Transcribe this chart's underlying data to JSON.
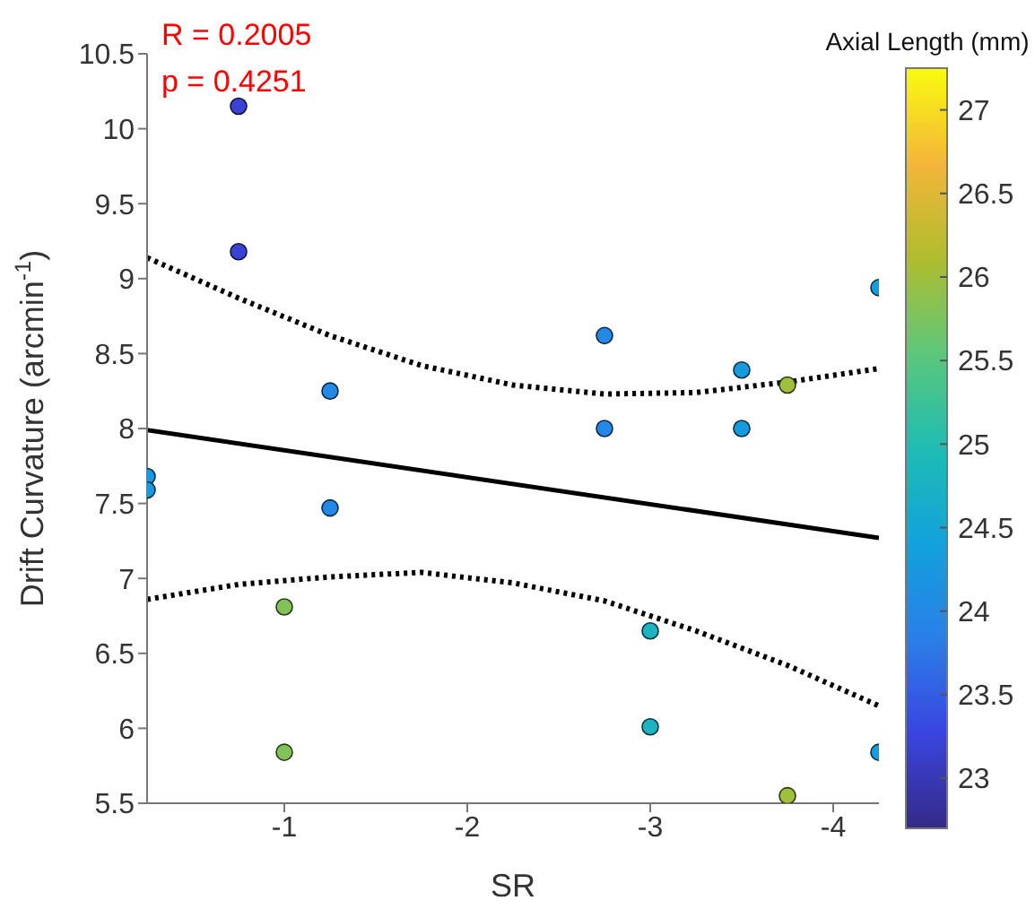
{
  "chart_data": {
    "type": "scatter",
    "xlabel": "SR",
    "ylabel": "Drift Curvature (arcmin$^{-1}$)",
    "clabel": "Axial Length (mm)",
    "annotations": [
      "R = 0.2005",
      "p = 0.4251"
    ],
    "xlim": [
      -0.25,
      -4.25
    ],
    "xticks": [
      -1,
      -2,
      -3,
      -4
    ],
    "ylim": [
      5.5,
      10.5
    ],
    "yticks": [
      5.5,
      6,
      6.5,
      7,
      7.5,
      8,
      8.5,
      9,
      9.5,
      10,
      10.5
    ],
    "clim": [
      22.7,
      27.25
    ],
    "cticks": [
      23,
      23.5,
      24,
      24.5,
      25,
      25.5,
      26,
      26.5,
      27
    ],
    "series": [
      {
        "type": "scatter",
        "marker": "circle",
        "x": [
          -0.75,
          -0.75,
          -1.25,
          -0.25,
          -0.25,
          -1.25,
          -1,
          -1,
          -2.75,
          -2.75,
          -3.5,
          -3.5,
          -3.75,
          -4.25,
          -3,
          -3,
          -4.25,
          -3.75
        ],
        "values": [
          10.15,
          9.18,
          8.25,
          7.68,
          7.59,
          7.47,
          6.81,
          5.84,
          8.62,
          8.0,
          8.39,
          8.0,
          8.29,
          8.94,
          6.65,
          6.01,
          5.84,
          5.55
        ],
        "colors": [
          "#3942d5",
          "#3942d5",
          "#2389e5",
          "#169bde",
          "#169bde",
          "#2389e5",
          "#82c258",
          "#82c258",
          "#2389e5",
          "#2389e5",
          "#169bde",
          "#169bde",
          "#9fbf3d",
          "#169bde",
          "#1bb4c0",
          "#1bb4c0",
          "#169bde",
          "#9fbf3d"
        ],
        "cvalues": [
          23.2,
          23.2,
          24,
          24.3,
          24.3,
          24,
          25.8,
          25.8,
          24,
          24,
          24.3,
          24.3,
          26,
          24.3,
          24.8,
          24.8,
          24.3,
          26
        ]
      },
      {
        "type": "line",
        "color": "#000000",
        "line_style": "solid",
        "marker": "none",
        "x": [
          -0.25,
          -4.25
        ],
        "values": [
          7.99,
          7.27
        ]
      },
      {
        "type": "line",
        "color": "#000000",
        "line_style": "dotted",
        "marker": "none",
        "x": [
          -0.25,
          -0.75,
          -1.25,
          -1.75,
          -2.25,
          -2.75,
          -3.25,
          -3.75,
          -4.25
        ],
        "values": [
          9.14,
          8.87,
          8.62,
          8.42,
          8.29,
          8.23,
          8.24,
          8.31,
          8.4
        ]
      },
      {
        "type": "line",
        "color": "#000000",
        "line_style": "dotted",
        "marker": "none",
        "x": [
          -0.25,
          -0.75,
          -1.25,
          -1.75,
          -2.25,
          -2.75,
          -3.25,
          -3.75,
          -4.25
        ],
        "values": [
          6.86,
          6.96,
          7.01,
          7.04,
          6.97,
          6.85,
          6.65,
          6.42,
          6.15
        ]
      }
    ]
  }
}
